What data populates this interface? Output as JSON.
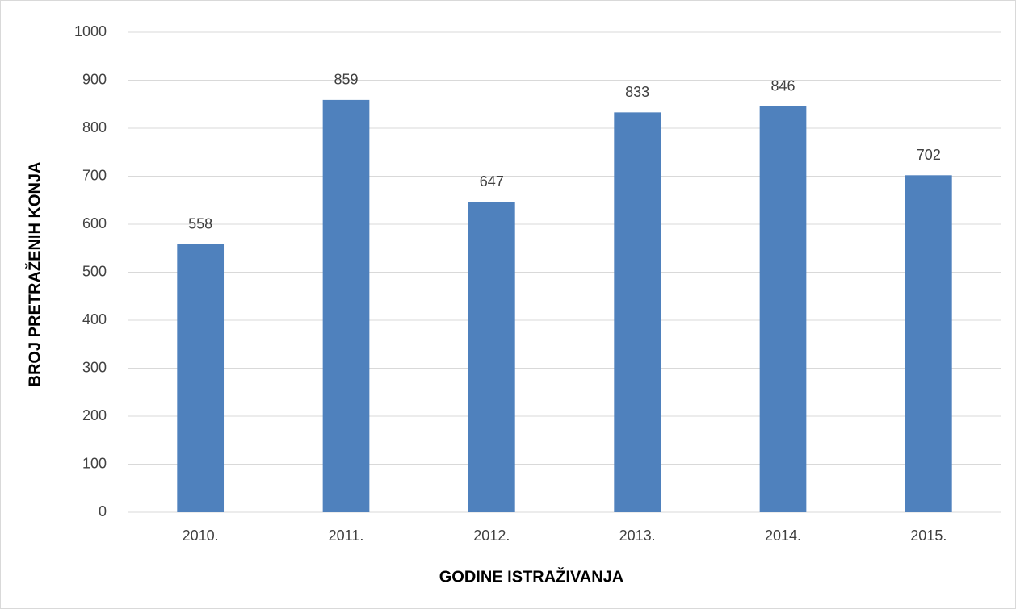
{
  "chart_data": {
    "type": "bar",
    "x_label": "GODINE ISTRAŽIVANJA",
    "y_label": "BROJ PRETRAŽENIH KONJA",
    "categories": [
      "2010.",
      "2011.",
      "2012.",
      "2013.",
      "2014.",
      "2015."
    ],
    "values": [
      558,
      859,
      647,
      833,
      846,
      702
    ],
    "color": "#4f81bd",
    "ylim": [
      0,
      1000
    ],
    "yticks": [
      0,
      100,
      200,
      300,
      400,
      500,
      600,
      700,
      800,
      900,
      1000
    ],
    "grid": true
  }
}
